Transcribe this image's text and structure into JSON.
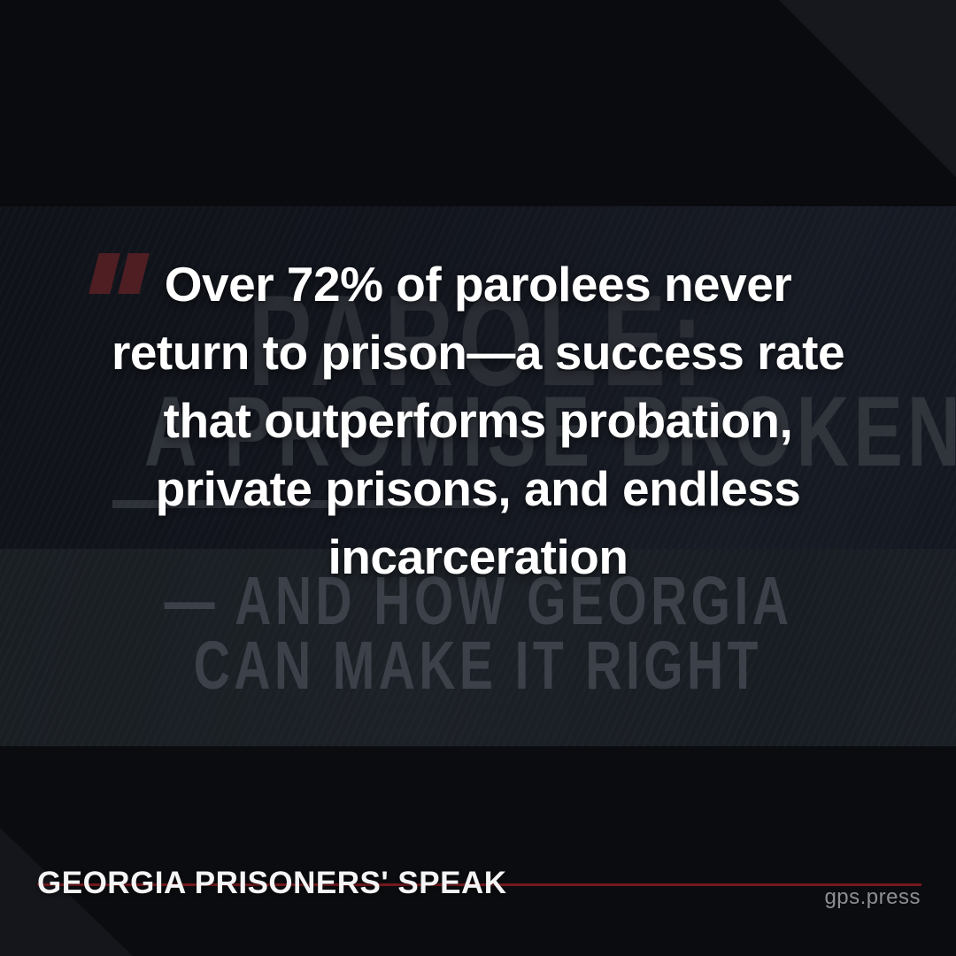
{
  "quote": {
    "lines": [
      "Over 72% of parolees never",
      "return to prison—a success rate",
      "that outperforms probation,",
      "private prisons, and endless",
      "incarceration"
    ]
  },
  "background_title": {
    "line1": "PAROLE:",
    "line2": "A PROMISE BROKEN",
    "line3": "— AND HOW GEORGIA",
    "line4": "CAN MAKE IT RIGHT"
  },
  "footer": {
    "brand": "GEORGIA PRISONERS' SPEAK",
    "site": "gps.press"
  },
  "icons": {
    "quote_mark": "double-bar-quotation-mark"
  },
  "colors": {
    "background_base": "#0a0b0e",
    "band_mid": "#12151d",
    "band_low": "#1b2026",
    "quote_text": "#ffffff",
    "quote_mark_red": "#4f1e23",
    "accent_line_red": "#75191e",
    "background_title_gray": "#30343b",
    "site_gray": "#8e8e93"
  }
}
